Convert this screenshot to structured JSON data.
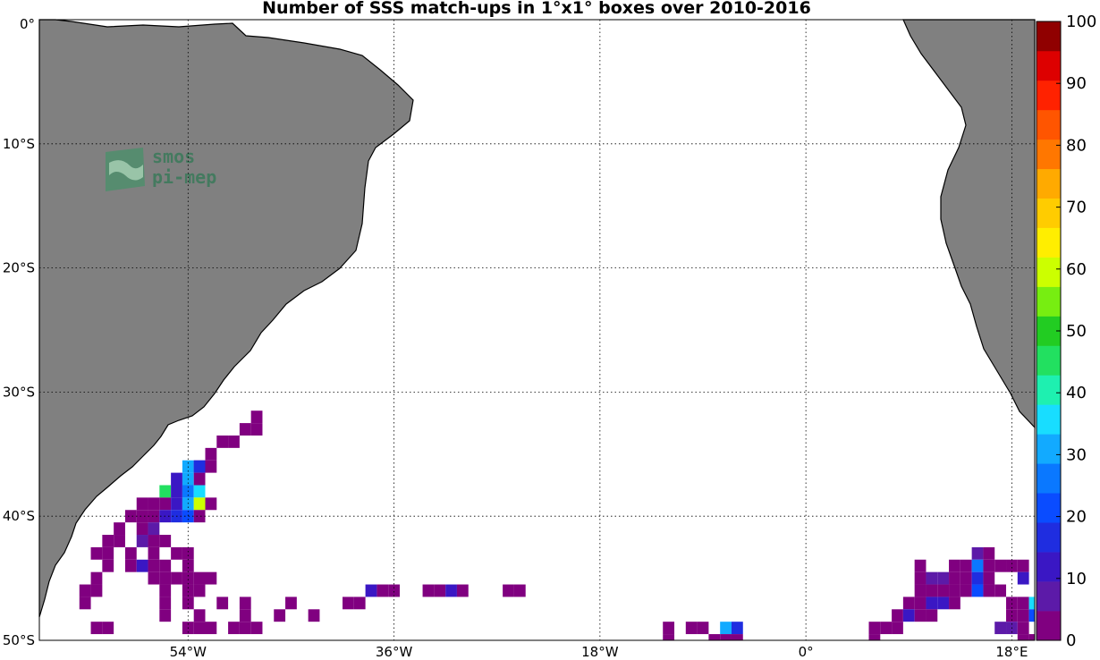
{
  "chart_data": {
    "type": "heatmap",
    "title": "Number of SSS match-ups in 1°x1° boxes over 2010-2016",
    "x_ticks": [
      "54°W",
      "36°W",
      "18°W",
      "0°",
      "18°E"
    ],
    "x_tick_values": [
      -54,
      -36,
      -18,
      0,
      18
    ],
    "y_ticks": [
      "0°",
      "10°S",
      "20°S",
      "30°S",
      "40°S",
      "50°S"
    ],
    "y_tick_values": [
      0,
      -10,
      -20,
      -30,
      -40,
      -50
    ],
    "xlim": [
      -67,
      20
    ],
    "ylim": [
      -50,
      0
    ],
    "grid": true,
    "colorbar": {
      "range": [
        0,
        100
      ],
      "ticks": [
        "0",
        "10",
        "20",
        "30",
        "40",
        "50",
        "60",
        "70",
        "80",
        "90",
        "100"
      ],
      "colors": [
        "#800080",
        "#5c1aa8",
        "#3a17c4",
        "#1f2de0",
        "#0a4cff",
        "#0a78ff",
        "#12aaff",
        "#18ddff",
        "#1ef0b0",
        "#22e060",
        "#22cc22",
        "#77ee11",
        "#ccff00",
        "#ffee00",
        "#ffcc00",
        "#ffaa00",
        "#ff7700",
        "#ff5500",
        "#ff2200",
        "#dd0000",
        "#900000"
      ]
    },
    "cells": [
      [
        -48,
        -32,
        3
      ],
      [
        -48,
        -33,
        3
      ],
      [
        -49,
        -33,
        3
      ],
      [
        -50,
        -34,
        3
      ],
      [
        -51,
        -34,
        3
      ],
      [
        -52,
        -35,
        3
      ],
      [
        -53,
        -36,
        3
      ],
      [
        -52,
        -36,
        3
      ],
      [
        -54,
        -36,
        33
      ],
      [
        -53,
        -36,
        17
      ],
      [
        -54,
        -37,
        30
      ],
      [
        -55,
        -37,
        12
      ],
      [
        -53,
        -37,
        3
      ],
      [
        -56,
        -38,
        45
      ],
      [
        -55,
        -38,
        12
      ],
      [
        -54,
        -38,
        28
      ],
      [
        -53,
        -38,
        38
      ],
      [
        -56,
        -39,
        3
      ],
      [
        -55,
        -39,
        12
      ],
      [
        -54,
        -39,
        30
      ],
      [
        -53,
        -39,
        58
      ],
      [
        -52,
        -39,
        3
      ],
      [
        -58,
        -39,
        3
      ],
      [
        -57,
        -39,
        3
      ],
      [
        -59,
        -40,
        3
      ],
      [
        -58,
        -40,
        3
      ],
      [
        -57,
        -40,
        3
      ],
      [
        -56,
        -40,
        12
      ],
      [
        -55,
        -40,
        15
      ],
      [
        -54,
        -40,
        20
      ],
      [
        -53,
        -40,
        3
      ],
      [
        -60,
        -41,
        3
      ],
      [
        -58,
        -41,
        3
      ],
      [
        -57,
        -41,
        8
      ],
      [
        -61,
        -42,
        3
      ],
      [
        -60,
        -42,
        3
      ],
      [
        -57,
        -42,
        3
      ],
      [
        -56,
        -42,
        3
      ],
      [
        -58,
        -42,
        8
      ],
      [
        -62,
        -43,
        3
      ],
      [
        -61,
        -43,
        3
      ],
      [
        -59,
        -43,
        3
      ],
      [
        -57,
        -43,
        3
      ],
      [
        -55,
        -43,
        3
      ],
      [
        -54,
        -43,
        3
      ],
      [
        -61,
        -44,
        3
      ],
      [
        -59,
        -44,
        3
      ],
      [
        -58,
        -44,
        12
      ],
      [
        -57,
        -44,
        3
      ],
      [
        -56,
        -44,
        3
      ],
      [
        -54,
        -44,
        3
      ],
      [
        -62,
        -45,
        3
      ],
      [
        -57,
        -45,
        3
      ],
      [
        -56,
        -45,
        3
      ],
      [
        -55,
        -45,
        3
      ],
      [
        -54,
        -45,
        3
      ],
      [
        -53,
        -45,
        3
      ],
      [
        -52,
        -45,
        3
      ],
      [
        -63,
        -46,
        3
      ],
      [
        -62,
        -46,
        3
      ],
      [
        -56,
        -46,
        3
      ],
      [
        -54,
        -46,
        3
      ],
      [
        -53,
        -46,
        3
      ],
      [
        -38,
        -46,
        10
      ],
      [
        -37,
        -46,
        3
      ],
      [
        -36,
        -46,
        3
      ],
      [
        -33,
        -46,
        3
      ],
      [
        -32,
        -46,
        3
      ],
      [
        -31,
        -46,
        12
      ],
      [
        -30,
        -46,
        3
      ],
      [
        -26,
        -46,
        3
      ],
      [
        -25,
        -46,
        3
      ],
      [
        -63,
        -47,
        3
      ],
      [
        -56,
        -47,
        3
      ],
      [
        -54,
        -47,
        3
      ],
      [
        -51,
        -47,
        3
      ],
      [
        -49,
        -47,
        3
      ],
      [
        -45,
        -47,
        3
      ],
      [
        -40,
        -47,
        3
      ],
      [
        -39,
        -47,
        3
      ],
      [
        -56,
        -48,
        3
      ],
      [
        -53,
        -48,
        3
      ],
      [
        -49,
        -48,
        3
      ],
      [
        -46,
        -48,
        3
      ],
      [
        -43,
        -48,
        3
      ],
      [
        -62,
        -49,
        3
      ],
      [
        -61,
        -49,
        3
      ],
      [
        -54,
        -49,
        3
      ],
      [
        -53,
        -49,
        3
      ],
      [
        -52,
        -49,
        3
      ],
      [
        -50,
        -49,
        3
      ],
      [
        -49,
        -49,
        3
      ],
      [
        -48,
        -49,
        3
      ],
      [
        -12,
        -49,
        3
      ],
      [
        -10,
        -49,
        3
      ],
      [
        -9,
        -49,
        3
      ],
      [
        -7,
        -49,
        30
      ],
      [
        -6,
        -49,
        18
      ],
      [
        -12,
        -50,
        3
      ],
      [
        -8,
        -50,
        3
      ],
      [
        -7,
        -50,
        3
      ],
      [
        -6,
        -50,
        3
      ],
      [
        15,
        -43,
        8
      ],
      [
        16,
        -43,
        3
      ],
      [
        10,
        -44,
        3
      ],
      [
        13,
        -44,
        3
      ],
      [
        14,
        -44,
        3
      ],
      [
        15,
        -44,
        25
      ],
      [
        16,
        -44,
        3
      ],
      [
        17,
        -44,
        3
      ],
      [
        18,
        -44,
        3
      ],
      [
        19,
        -44,
        3
      ],
      [
        10,
        -45,
        3
      ],
      [
        11,
        -45,
        8
      ],
      [
        12,
        -45,
        8
      ],
      [
        13,
        -45,
        3
      ],
      [
        14,
        -45,
        3
      ],
      [
        15,
        -45,
        15
      ],
      [
        16,
        -45,
        3
      ],
      [
        19,
        -45,
        10
      ],
      [
        10,
        -46,
        3
      ],
      [
        11,
        -46,
        3
      ],
      [
        12,
        -46,
        3
      ],
      [
        13,
        -46,
        3
      ],
      [
        14,
        -46,
        3
      ],
      [
        15,
        -46,
        20
      ],
      [
        16,
        -46,
        3
      ],
      [
        17,
        -46,
        3
      ],
      [
        9,
        -47,
        3
      ],
      [
        10,
        -47,
        3
      ],
      [
        11,
        -47,
        10
      ],
      [
        12,
        -47,
        10
      ],
      [
        13,
        -47,
        3
      ],
      [
        18,
        -47,
        3
      ],
      [
        19,
        -47,
        3
      ],
      [
        20,
        -47,
        35
      ],
      [
        8,
        -48,
        3
      ],
      [
        9,
        -48,
        10
      ],
      [
        10,
        -48,
        3
      ],
      [
        11,
        -48,
        3
      ],
      [
        18,
        -48,
        3
      ],
      [
        19,
        -48,
        3
      ],
      [
        20,
        -48,
        20
      ],
      [
        6,
        -49,
        3
      ],
      [
        7,
        -49,
        3
      ],
      [
        8,
        -49,
        3
      ],
      [
        17,
        -49,
        8
      ],
      [
        18,
        -49,
        8
      ],
      [
        19,
        -49,
        3
      ],
      [
        6,
        -50,
        3
      ],
      [
        19,
        -50,
        3
      ],
      [
        20,
        -50,
        3
      ]
    ]
  },
  "map": {
    "land_color": "#808080",
    "logo_text": [
      "smos",
      "pi-mep"
    ]
  }
}
